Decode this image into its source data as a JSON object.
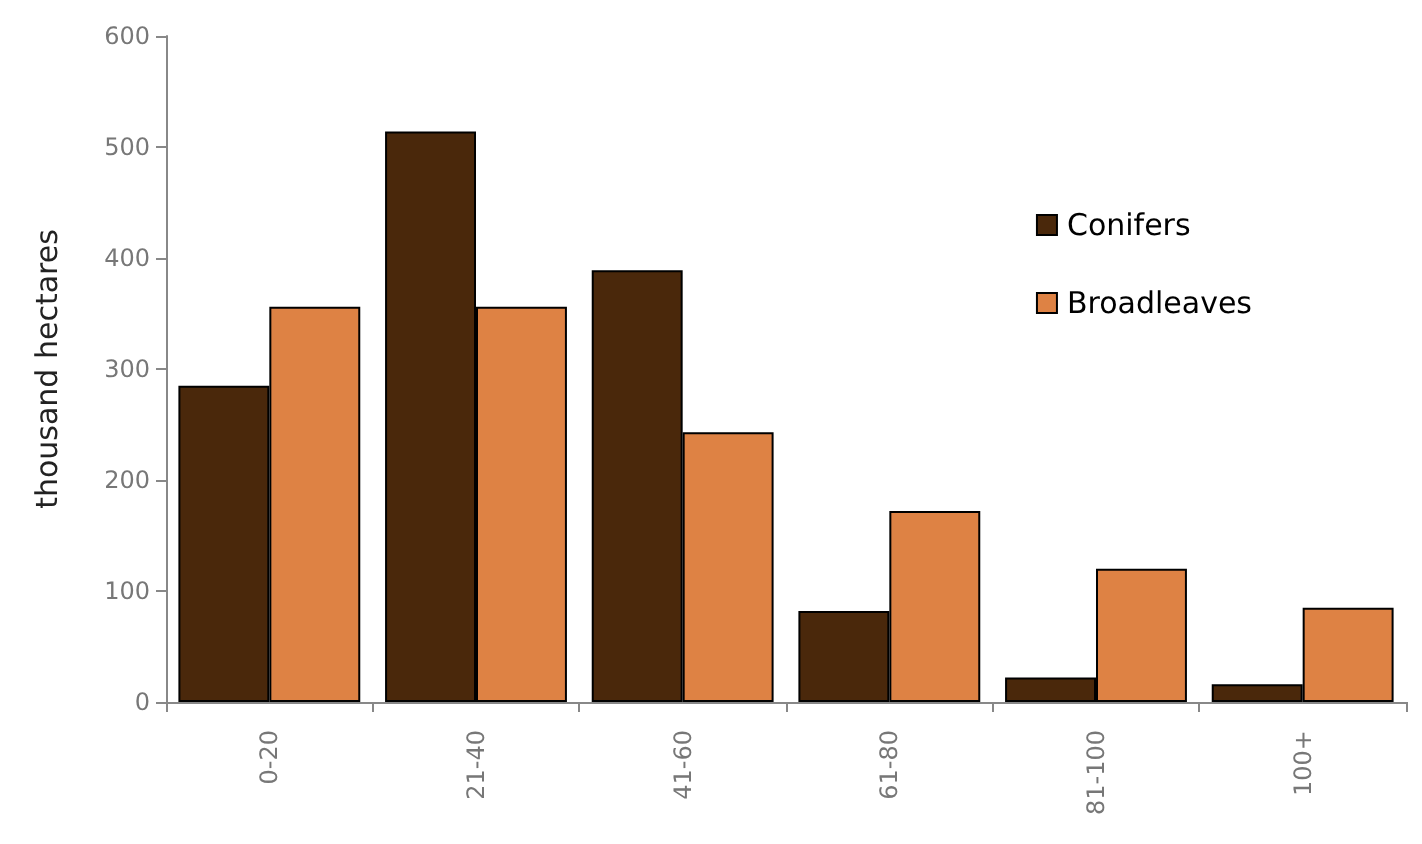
{
  "chart_data": {
    "type": "bar",
    "ylabel": "thousand hectares",
    "categories": [
      "0-20",
      "21-40",
      "41-60",
      "61-80",
      "81-100",
      "100+"
    ],
    "series": [
      {
        "name": "Conifers",
        "color": "#4a280b",
        "values": [
          285,
          514,
          389,
          82,
          22,
          16
        ]
      },
      {
        "name": "Broadleaves",
        "color": "#de8244",
        "values": [
          356,
          356,
          243,
          172,
          120,
          85
        ]
      }
    ],
    "ylim": [
      0,
      600
    ],
    "yticks": [
      0,
      100,
      200,
      300,
      400,
      500,
      600
    ],
    "grid": false,
    "legend": "top right"
  }
}
